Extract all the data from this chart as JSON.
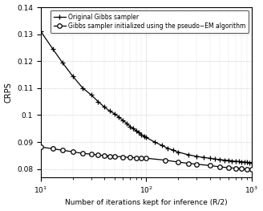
{
  "title": "",
  "xlabel": "Number of iterations kept for inference (R/2)",
  "ylabel": "CRPS",
  "xlim": [
    10,
    1000
  ],
  "ylim": [
    0.077,
    0.14
  ],
  "yticks": [
    0.08,
    0.09,
    0.1,
    0.11,
    0.12,
    0.13,
    0.14
  ],
  "ytick_labels": [
    "0.08",
    "0.09",
    "0.1",
    "0.11",
    "0.12",
    "0.13",
    "0.14"
  ],
  "line1_label": "Original Gibbs sampler",
  "line2_label": "Gibbs sampler initialized using the pseudo−EM algorithm",
  "line1_x": [
    10,
    13,
    16,
    20,
    25,
    30,
    35,
    40,
    45,
    50,
    55,
    60,
    65,
    70,
    75,
    80,
    85,
    90,
    95,
    100,
    120,
    140,
    160,
    180,
    200,
    250,
    300,
    350,
    400,
    450,
    500,
    550,
    600,
    650,
    700,
    750,
    800,
    850,
    900,
    950,
    1000
  ],
  "line1_y": [
    0.131,
    0.1245,
    0.1195,
    0.1145,
    0.11,
    0.1075,
    0.105,
    0.103,
    0.1015,
    0.1005,
    0.0993,
    0.098,
    0.097,
    0.0958,
    0.095,
    0.0942,
    0.0935,
    0.0928,
    0.0922,
    0.0917,
    0.09,
    0.0888,
    0.0877,
    0.087,
    0.0863,
    0.0853,
    0.0847,
    0.0843,
    0.084,
    0.0837,
    0.0835,
    0.0833,
    0.0832,
    0.083,
    0.0829,
    0.0828,
    0.0827,
    0.0826,
    0.0825,
    0.0824,
    0.0824
  ],
  "line2_x": [
    10,
    13,
    16,
    20,
    25,
    30,
    35,
    40,
    45,
    50,
    60,
    70,
    80,
    90,
    100,
    150,
    200,
    250,
    300,
    400,
    500,
    600,
    700,
    800,
    900,
    1000
  ],
  "line2_y": [
    0.0882,
    0.0875,
    0.087,
    0.0864,
    0.0858,
    0.0855,
    0.0852,
    0.085,
    0.0848,
    0.0847,
    0.0845,
    0.0843,
    0.0842,
    0.0841,
    0.084,
    0.0833,
    0.0826,
    0.0821,
    0.0818,
    0.0813,
    0.0808,
    0.0805,
    0.0803,
    0.0801,
    0.08,
    0.0799
  ],
  "line_color": "#000000",
  "background_color": "#ffffff",
  "grid_color": "#bbbbbb",
  "marker1": "+",
  "marker2": "o",
  "markersize1": 4,
  "markersize2": 4,
  "linewidth": 0.9,
  "xlabel_fontsize": 6.5,
  "ylabel_fontsize": 7,
  "tick_fontsize": 6.5,
  "legend_fontsize": 5.5
}
